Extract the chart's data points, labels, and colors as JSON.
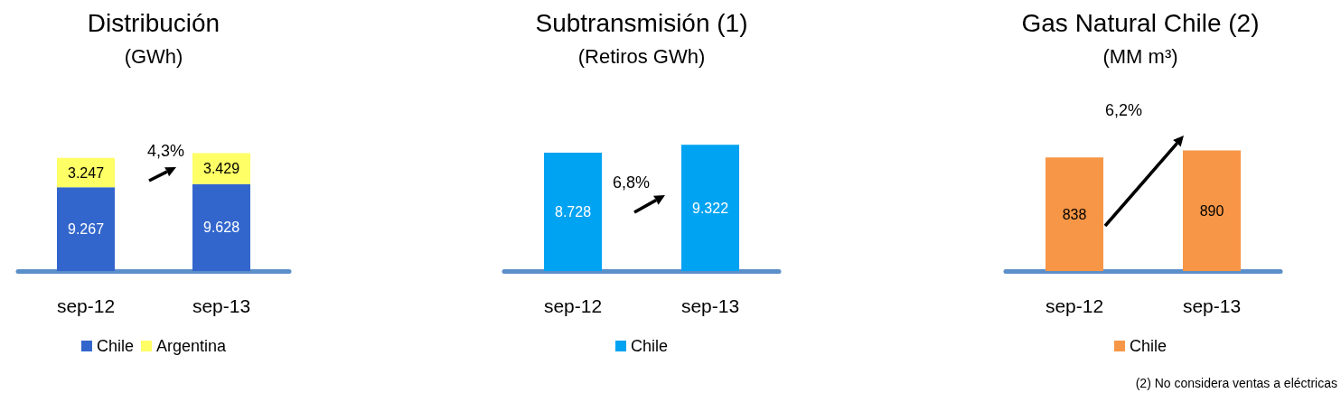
{
  "chart_data": [
    {
      "type": "bar",
      "title": "Distribución",
      "subtitle": "(GWh)",
      "categories": [
        "sep-12",
        "sep-13"
      ],
      "stacked": true,
      "series": [
        {
          "name": "Chile",
          "color": "#3366cc",
          "values": [
            9267,
            9628
          ],
          "value_labels": [
            "9.267",
            "9.628"
          ]
        },
        {
          "name": "Argentina",
          "color": "#ffff66",
          "values": [
            3247,
            3429
          ],
          "value_labels": [
            "3.247",
            "3.429"
          ]
        }
      ],
      "annotations": [
        "4,3%"
      ],
      "legend": "bottom",
      "grid": false
    },
    {
      "type": "bar",
      "title": "Subtransmisión (1)",
      "subtitle": "(Retiros GWh)",
      "categories": [
        "sep-12",
        "sep-13"
      ],
      "series": [
        {
          "name": "Chile",
          "color": "#00a2f2",
          "values": [
            8728,
            9322
          ],
          "value_labels": [
            "8.728",
            "9.322"
          ]
        }
      ],
      "annotations": [
        "6,8%"
      ],
      "legend": "bottom",
      "grid": false
    },
    {
      "type": "bar",
      "title": "Gas Natural Chile (2)",
      "subtitle": "(MM m³)",
      "categories": [
        "sep-12",
        "sep-13"
      ],
      "series": [
        {
          "name": "Chile",
          "color": "#f79646",
          "values": [
            838,
            890
          ],
          "value_labels": [
            "838",
            "890"
          ]
        }
      ],
      "annotations": [
        "6,2%",
        "(2) No considera ventas a eléctricas"
      ],
      "legend": "bottom",
      "grid": false
    }
  ]
}
